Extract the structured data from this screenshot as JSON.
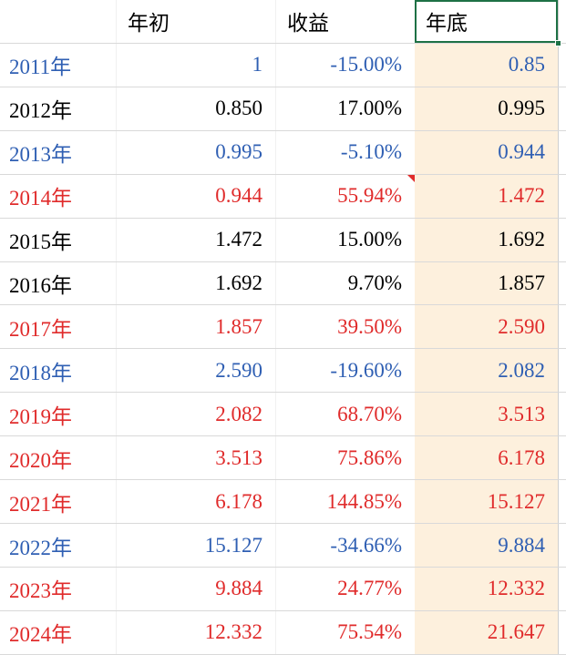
{
  "app": {
    "type": "spreadsheet-table"
  },
  "colors": {
    "gain_strong_text": "#e02b2b",
    "loss_text": "#2f5fb3",
    "neutral_text": "#000000",
    "end_column_bg": "#fdf0dd",
    "grid_line": "#d9d9d9",
    "selection_green": "#1e7145",
    "comment_marker": "#e02b2b"
  },
  "table": {
    "headers": {
      "year": "",
      "start": "年初",
      "return": "收益",
      "end": "年底"
    },
    "selected_header_cell": "年底",
    "rows": [
      {
        "year": "2011年",
        "start": "1",
        "return": "-15.00%",
        "end": "0.85",
        "color": "blue",
        "note": false
      },
      {
        "year": "2012年",
        "start": "0.850",
        "return": "17.00%",
        "end": "0.995",
        "color": "black",
        "note": false
      },
      {
        "year": "2013年",
        "start": "0.995",
        "return": "-5.10%",
        "end": "0.944",
        "color": "blue",
        "note": false
      },
      {
        "year": "2014年",
        "start": "0.944",
        "return": "55.94%",
        "end": "1.472",
        "color": "red",
        "note": true
      },
      {
        "year": "2015年",
        "start": "1.472",
        "return": "15.00%",
        "end": "1.692",
        "color": "black",
        "note": false
      },
      {
        "year": "2016年",
        "start": "1.692",
        "return": "9.70%",
        "end": "1.857",
        "color": "black",
        "note": false
      },
      {
        "year": "2017年",
        "start": "1.857",
        "return": "39.50%",
        "end": "2.590",
        "color": "red",
        "note": false
      },
      {
        "year": "2018年",
        "start": "2.590",
        "return": "-19.60%",
        "end": "2.082",
        "color": "blue",
        "note": false
      },
      {
        "year": "2019年",
        "start": "2.082",
        "return": "68.70%",
        "end": "3.513",
        "color": "red",
        "note": false
      },
      {
        "year": "2020年",
        "start": "3.513",
        "return": "75.86%",
        "end": "6.178",
        "color": "red",
        "note": false
      },
      {
        "year": "2021年",
        "start": "6.178",
        "return": "144.85%",
        "end": "15.127",
        "color": "red",
        "note": false
      },
      {
        "year": "2022年",
        "start": "15.127",
        "return": "-34.66%",
        "end": "9.884",
        "color": "blue",
        "note": false
      },
      {
        "year": "2023年",
        "start": "9.884",
        "return": "24.77%",
        "end": "12.332",
        "color": "red",
        "note": false
      },
      {
        "year": "2024年",
        "start": "12.332",
        "return": "75.54%",
        "end": "21.647",
        "color": "red",
        "note": false
      }
    ]
  }
}
